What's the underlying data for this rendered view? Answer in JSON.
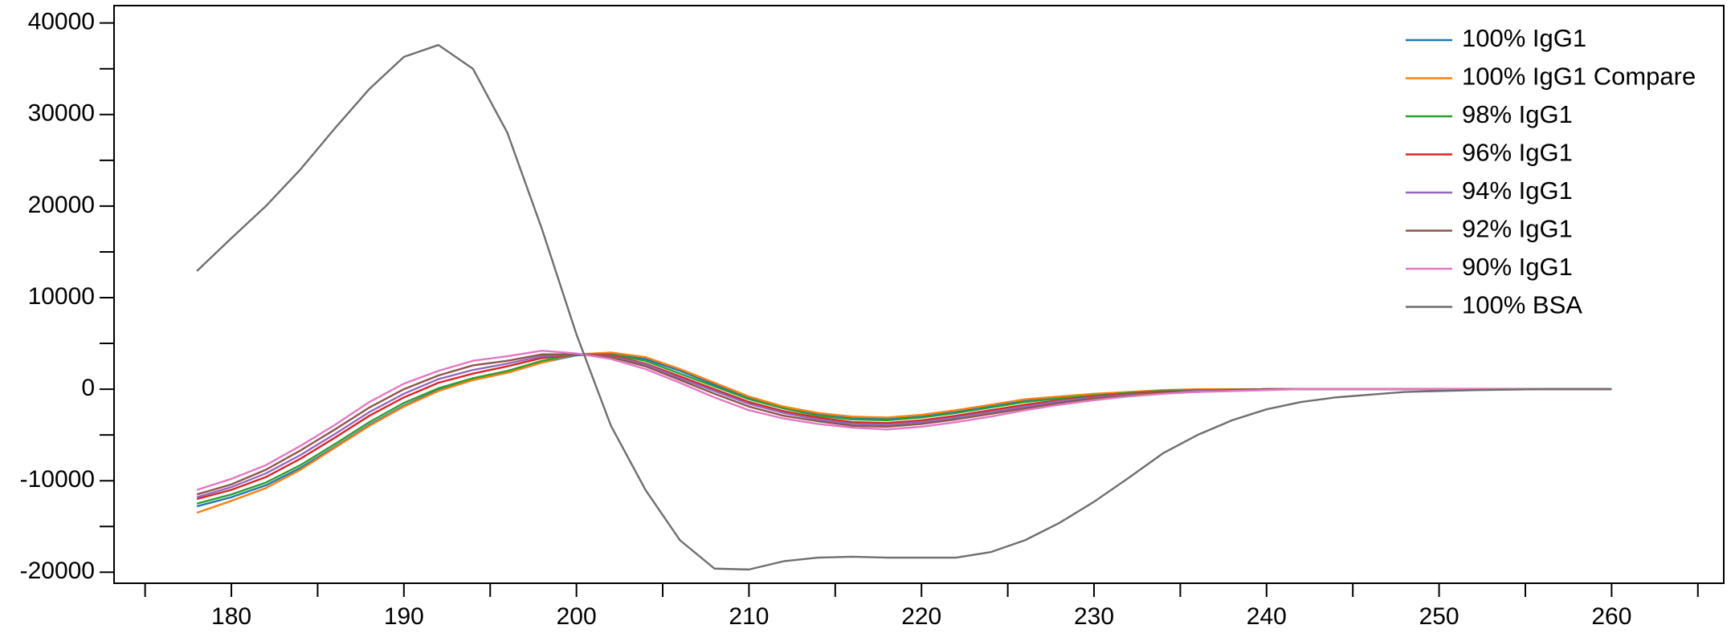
{
  "chart_data": {
    "type": "line",
    "x": [
      178,
      180,
      182,
      184,
      186,
      188,
      190,
      192,
      194,
      196,
      198,
      200,
      202,
      204,
      206,
      208,
      210,
      212,
      214,
      216,
      218,
      220,
      222,
      224,
      226,
      228,
      230,
      232,
      234,
      236,
      238,
      240,
      242,
      244,
      246,
      248,
      250,
      252,
      254,
      256,
      258,
      260
    ],
    "series": [
      {
        "name": "100% IgG1",
        "color": "#1f77b4",
        "values": [
          -12800,
          -11800,
          -10500,
          -8600,
          -6300,
          -3900,
          -1800,
          -100,
          1000,
          1800,
          2900,
          3700,
          3900,
          3300,
          2000,
          500,
          -900,
          -2000,
          -2700,
          -3100,
          -3300,
          -3000,
          -2500,
          -1900,
          -1300,
          -900,
          -600,
          -400,
          -200,
          -100,
          -50,
          0,
          0,
          0,
          0,
          0,
          0,
          0,
          0,
          0,
          0,
          0
        ]
      },
      {
        "name": "100% IgG1 Compare",
        "color": "#ff7f0e",
        "values": [
          -13500,
          -12200,
          -10800,
          -8800,
          -6400,
          -4000,
          -1900,
          -200,
          1000,
          1800,
          2900,
          3800,
          4000,
          3500,
          2200,
          700,
          -800,
          -1900,
          -2600,
          -3000,
          -3100,
          -2800,
          -2300,
          -1700,
          -1100,
          -800,
          -500,
          -300,
          -100,
          0,
          0,
          0,
          0,
          0,
          0,
          0,
          0,
          0,
          0,
          0,
          0,
          0
        ]
      },
      {
        "name": "98% IgG1",
        "color": "#2ca02c",
        "values": [
          -12500,
          -11500,
          -10200,
          -8300,
          -6000,
          -3600,
          -1500,
          100,
          1200,
          2000,
          3100,
          3800,
          3800,
          3100,
          1700,
          300,
          -1100,
          -2100,
          -2900,
          -3300,
          -3400,
          -3100,
          -2600,
          -2000,
          -1400,
          -1000,
          -700,
          -400,
          -200,
          -100,
          -50,
          0,
          0,
          0,
          0,
          0,
          0,
          0,
          0,
          0,
          0,
          0
        ]
      },
      {
        "name": "96% IgG1",
        "color": "#d62728",
        "values": [
          -12000,
          -11000,
          -9600,
          -7600,
          -5300,
          -2900,
          -900,
          700,
          1700,
          2500,
          3400,
          3800,
          3700,
          2800,
          1400,
          0,
          -1400,
          -2400,
          -3100,
          -3600,
          -3700,
          -3400,
          -2900,
          -2300,
          -1700,
          -1200,
          -800,
          -500,
          -300,
          -200,
          -100,
          0,
          0,
          0,
          0,
          0,
          0,
          0,
          0,
          0,
          0,
          0
        ]
      },
      {
        "name": "94% IgG1",
        "color": "#9467bd",
        "values": [
          -11800,
          -10700,
          -9200,
          -7200,
          -4900,
          -2500,
          -500,
          1100,
          2100,
          2800,
          3600,
          3800,
          3600,
          2700,
          1200,
          -200,
          -1600,
          -2600,
          -3300,
          -3800,
          -3900,
          -3600,
          -3100,
          -2500,
          -1900,
          -1300,
          -900,
          -600,
          -400,
          -200,
          -100,
          0,
          0,
          0,
          0,
          0,
          0,
          0,
          0,
          0,
          0,
          0
        ]
      },
      {
        "name": "92% IgG1",
        "color": "#8c564b",
        "values": [
          -11500,
          -10400,
          -8800,
          -6700,
          -4400,
          -2000,
          0,
          1500,
          2600,
          3100,
          3800,
          3800,
          3500,
          2500,
          1000,
          -500,
          -1900,
          -2900,
          -3500,
          -4000,
          -4100,
          -3800,
          -3300,
          -2700,
          -2100,
          -1500,
          -1000,
          -700,
          -400,
          -300,
          -100,
          0,
          0,
          0,
          0,
          0,
          0,
          0,
          0,
          0,
          0,
          0
        ]
      },
      {
        "name": "90% IgG1",
        "color": "#e377c2",
        "values": [
          -11000,
          -9800,
          -8300,
          -6200,
          -3900,
          -1400,
          600,
          2000,
          3100,
          3600,
          4200,
          3900,
          3300,
          2200,
          700,
          -900,
          -2300,
          -3200,
          -3800,
          -4200,
          -4400,
          -4100,
          -3600,
          -3000,
          -2300,
          -1700,
          -1200,
          -800,
          -500,
          -300,
          -200,
          -100,
          0,
          0,
          0,
          0,
          0,
          0,
          0,
          0,
          0,
          0
        ]
      },
      {
        "name": "100% BSA",
        "color": "#6e6e6e",
        "values": [
          12900,
          16500,
          20000,
          24000,
          28500,
          32800,
          36300,
          37600,
          35000,
          28000,
          17500,
          6000,
          -4000,
          -11000,
          -16500,
          -19600,
          -19700,
          -18800,
          -18400,
          -18300,
          -18400,
          -18400,
          -18400,
          -17800,
          -16500,
          -14600,
          -12300,
          -9700,
          -7000,
          -5000,
          -3400,
          -2200,
          -1400,
          -900,
          -600,
          -300,
          -200,
          -100,
          -50,
          0,
          0,
          0
        ]
      }
    ],
    "xlim": [
      173.2,
      266.5
    ],
    "xticks": [
      180,
      190,
      200,
      210,
      220,
      230,
      240,
      250,
      260
    ],
    "xminor_ticks": [
      175,
      185,
      195,
      205,
      215,
      225,
      235,
      245,
      255,
      265
    ],
    "ylim": [
      -21200,
      41900
    ],
    "yticks": [
      -20000,
      -10000,
      0,
      10000,
      20000,
      30000,
      40000
    ],
    "yminor_ticks": [
      -15000,
      -5000,
      5000,
      15000,
      25000,
      35000
    ],
    "legend": "upper right"
  }
}
